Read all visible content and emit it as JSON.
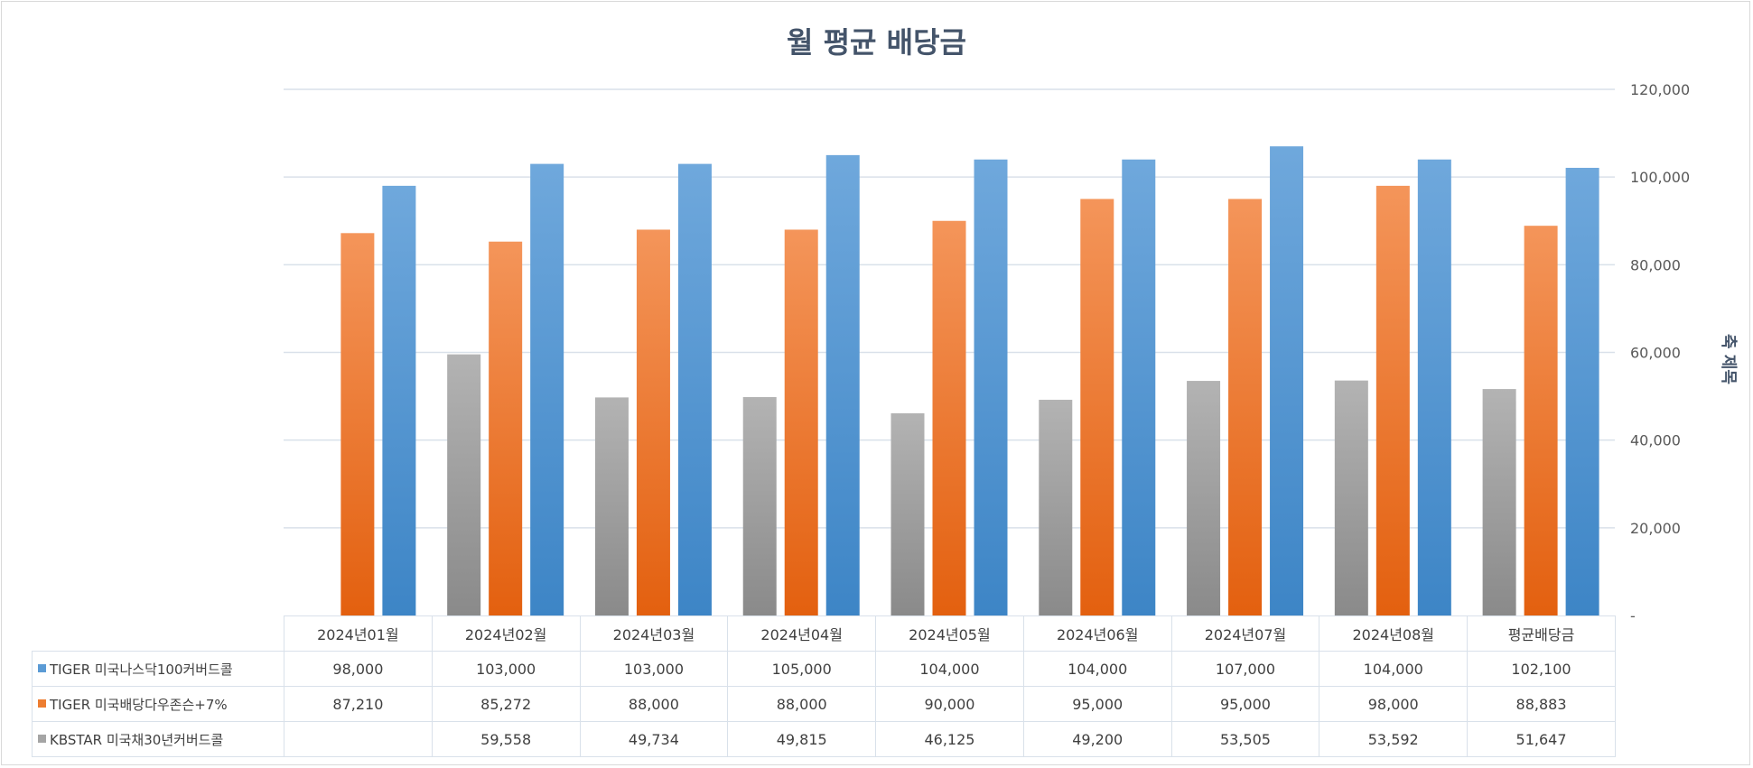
{
  "chart_data": {
    "type": "bar",
    "title": "월 평균 배당금",
    "xlabel": "",
    "ylabel": "축 제목",
    "ylim": [
      0,
      120000
    ],
    "y_ticks": [
      0,
      20000,
      40000,
      60000,
      80000,
      100000,
      120000
    ],
    "y_tick_labels": [
      "-",
      "20,000",
      "40,000",
      "60,000",
      "80,000",
      "100,000",
      "120,000"
    ],
    "grid": true,
    "legend": "data-table",
    "categories": [
      "2024년01월",
      "2024년02월",
      "2024년03월",
      "2024년04월",
      "2024년05월",
      "2024년06월",
      "2024년07월",
      "2024년08월",
      "평균배당금"
    ],
    "series": [
      {
        "name": "TIGER 미국나스닥100커버드콜",
        "color": "#5b9bd5",
        "values": [
          98000,
          103000,
          103000,
          105000,
          104000,
          104000,
          107000,
          104000,
          102100
        ],
        "labels": [
          "98,000",
          "103,000",
          "103,000",
          "105,000",
          "104,000",
          "104,000",
          "107,000",
          "104,000",
          "102,100"
        ]
      },
      {
        "name": "TIGER 미국배당다우존슨+7%",
        "color": "#ed7d31",
        "values": [
          87210,
          85272,
          88000,
          88000,
          90000,
          95000,
          95000,
          98000,
          88883
        ],
        "labels": [
          "87,210",
          "85,272",
          "88,000",
          "88,000",
          "90,000",
          "95,000",
          "95,000",
          "98,000",
          "88,883"
        ]
      },
      {
        "name": "KBSTAR 미국채30년커버드콜",
        "color": "#a5a5a5",
        "values": [
          null,
          59558,
          49734,
          49815,
          46125,
          49200,
          53505,
          53592,
          51647
        ],
        "labels": [
          "",
          "59,558",
          "49,734",
          "49,815",
          "46,125",
          "49,200",
          "53,505",
          "53,592",
          "51,647"
        ]
      }
    ]
  }
}
